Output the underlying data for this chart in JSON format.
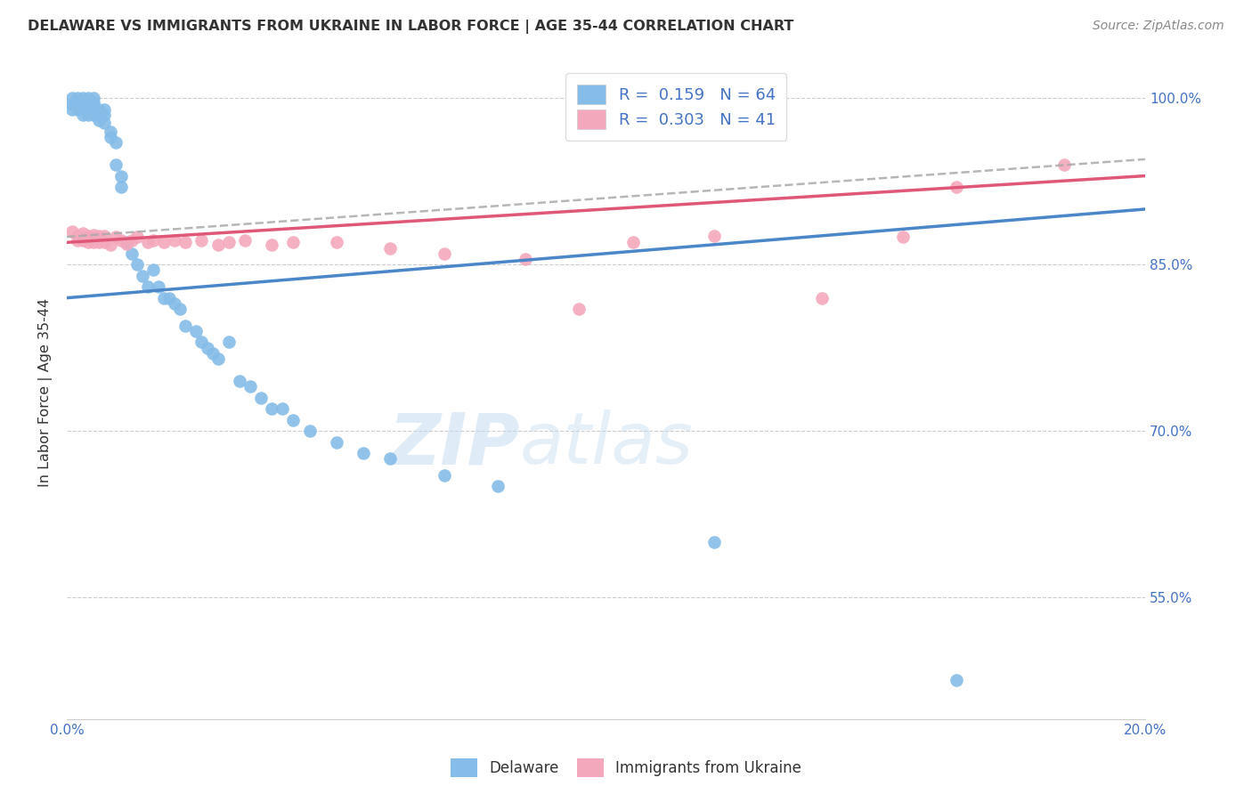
{
  "title": "DELAWARE VS IMMIGRANTS FROM UKRAINE IN LABOR FORCE | AGE 35-44 CORRELATION CHART",
  "source": "Source: ZipAtlas.com",
  "ylabel": "In Labor Force | Age 35-44",
  "xlim": [
    0.0,
    0.2
  ],
  "ylim": [
    0.44,
    1.03
  ],
  "ytick_positions": [
    0.55,
    0.7,
    0.85,
    1.0
  ],
  "ytick_labels": [
    "55.0%",
    "70.0%",
    "85.0%",
    "100.0%"
  ],
  "R_delaware": 0.159,
  "N_delaware": 64,
  "R_ukraine": 0.303,
  "N_ukraine": 41,
  "blue_color": "#85BCE8",
  "pink_color": "#F4A8BC",
  "blue_line_color": "#4A86C8",
  "pink_line_color": "#E05878",
  "watermark_zip": "ZIP",
  "watermark_atlas": "atlas",
  "blue_x": [
    0.001,
    0.001,
    0.001,
    0.002,
    0.002,
    0.002,
    0.002,
    0.003,
    0.003,
    0.003,
    0.003,
    0.003,
    0.004,
    0.004,
    0.004,
    0.004,
    0.005,
    0.005,
    0.005,
    0.005,
    0.006,
    0.006,
    0.006,
    0.007,
    0.007,
    0.007,
    0.008,
    0.008,
    0.009,
    0.009,
    0.01,
    0.01,
    0.011,
    0.012,
    0.013,
    0.014,
    0.015,
    0.016,
    0.017,
    0.018,
    0.019,
    0.02,
    0.021,
    0.022,
    0.024,
    0.025,
    0.026,
    0.027,
    0.028,
    0.03,
    0.032,
    0.034,
    0.036,
    0.038,
    0.04,
    0.042,
    0.045,
    0.05,
    0.055,
    0.06,
    0.07,
    0.08,
    0.12,
    0.165
  ],
  "blue_y": [
    1.0,
    0.995,
    0.99,
    1.0,
    0.998,
    0.995,
    0.99,
    1.0,
    0.998,
    0.993,
    0.99,
    0.985,
    1.0,
    0.998,
    0.994,
    0.985,
    1.0,
    0.996,
    0.992,
    0.985,
    0.99,
    0.985,
    0.98,
    0.99,
    0.985,
    0.978,
    0.97,
    0.965,
    0.96,
    0.94,
    0.93,
    0.92,
    0.87,
    0.86,
    0.85,
    0.84,
    0.83,
    0.845,
    0.83,
    0.82,
    0.82,
    0.815,
    0.81,
    0.795,
    0.79,
    0.78,
    0.775,
    0.77,
    0.765,
    0.78,
    0.745,
    0.74,
    0.73,
    0.72,
    0.72,
    0.71,
    0.7,
    0.69,
    0.68,
    0.675,
    0.66,
    0.65,
    0.6,
    0.475
  ],
  "pink_x": [
    0.001,
    0.002,
    0.002,
    0.003,
    0.003,
    0.004,
    0.004,
    0.005,
    0.005,
    0.006,
    0.006,
    0.007,
    0.007,
    0.008,
    0.009,
    0.01,
    0.011,
    0.012,
    0.013,
    0.015,
    0.016,
    0.018,
    0.02,
    0.022,
    0.025,
    0.028,
    0.03,
    0.033,
    0.038,
    0.042,
    0.05,
    0.06,
    0.07,
    0.085,
    0.095,
    0.105,
    0.12,
    0.14,
    0.155,
    0.165,
    0.185
  ],
  "pink_y": [
    0.88,
    0.876,
    0.872,
    0.878,
    0.872,
    0.876,
    0.87,
    0.877,
    0.87,
    0.876,
    0.87,
    0.876,
    0.87,
    0.868,
    0.875,
    0.872,
    0.869,
    0.872,
    0.875,
    0.87,
    0.872,
    0.87,
    0.872,
    0.87,
    0.872,
    0.868,
    0.87,
    0.872,
    0.868,
    0.87,
    0.87,
    0.865,
    0.86,
    0.855,
    0.81,
    0.87,
    0.876,
    0.82,
    0.875,
    0.92,
    0.94
  ],
  "blue_line_x0": 0.0,
  "blue_line_y0": 0.82,
  "blue_line_x1": 0.2,
  "blue_line_y1": 0.9,
  "pink_line_x0": 0.0,
  "pink_line_y0": 0.87,
  "pink_line_x1": 0.2,
  "pink_line_y1": 0.93,
  "dash_line_x0": 0.0,
  "dash_line_y0": 0.875,
  "dash_line_x1": 0.2,
  "dash_line_y1": 0.945
}
